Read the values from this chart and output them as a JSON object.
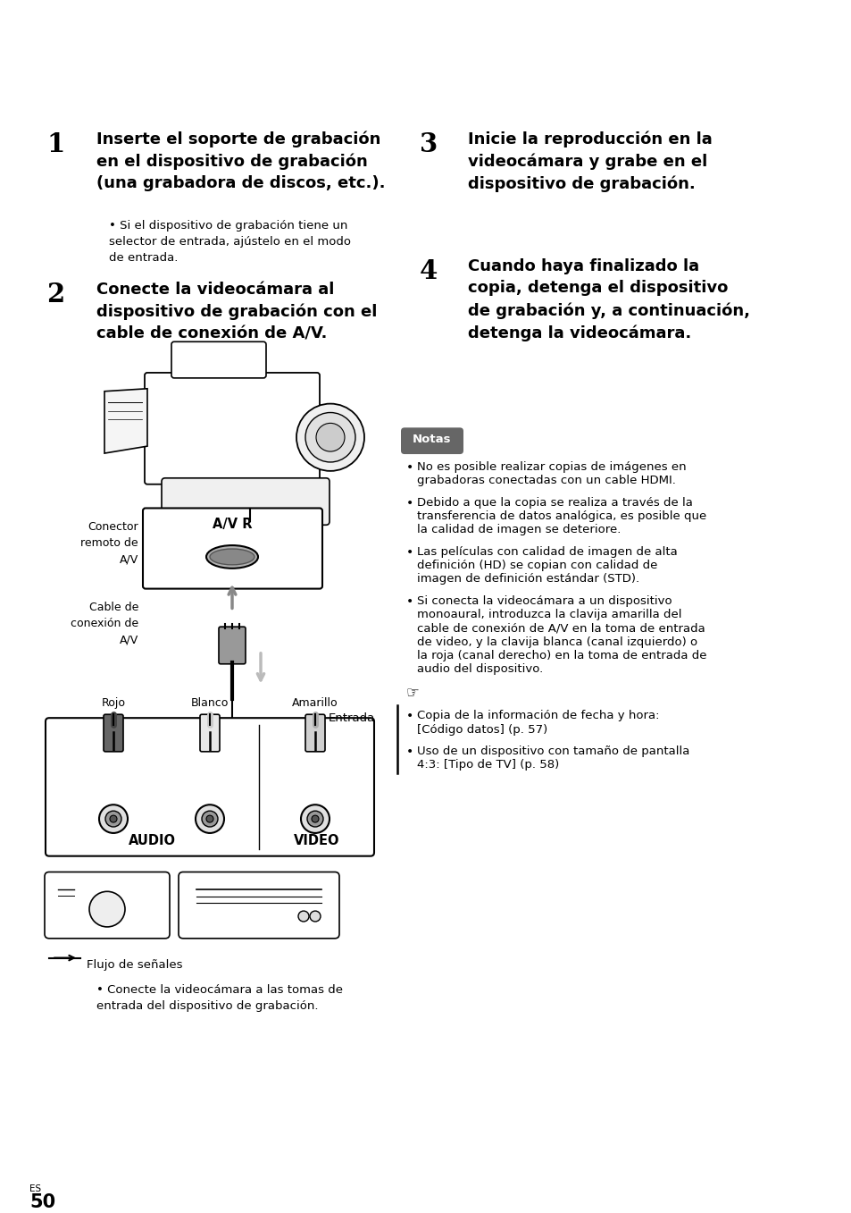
{
  "bg_color": "#ffffff",
  "page_number": "50",
  "page_label": "ES",
  "step1_num": "1",
  "step1_text": "Inserte el soporte de grabación\nen el dispositivo de grabación\n(una grabadora de discos, etc.).",
  "step1_bullet": "Si el dispositivo de grabación tiene un\nselector de entrada, ajústelo en el modo\nde entrada.",
  "step2_num": "2",
  "step2_text": "Conecte la videocámara al\ndispositivo de grabación con el\ncable de conexión de A/V.",
  "step3_num": "3",
  "step3_text": "Inicie la reproducción en la\nvideocámara y grabe en el\ndispositivo de grabación.",
  "step4_num": "4",
  "step4_text": "Cuando haya finalizado la\ncopia, detenga el dispositivo\nde grabación y, a continuación,\ndetenga la videocámara.",
  "notas_label": "Notas",
  "notas_bullets": [
    "No es posible realizar copias de imágenes en\ngrabadoras conectadas con un cable HDMI.",
    "Debido a que la copia se realiza a través de la\ntransferencia de datos analógica, es posible que\nla calidad de imagen se deteriore.",
    "Las películas con calidad de imagen de alta\ndefinición (HD) se copian con calidad de\nimagen de definición estándar (STD).",
    "Si conecta la videocámara a un dispositivo\nmonoaural, introduzca la clavija amarilla del\ncable de conexión de A/V en la toma de entrada\nde video, y la clavija blanca (canal izquierdo) o\nla roja (canal derecho) en la toma de entrada de\naudio del dispositivo."
  ],
  "ref_symbol": "☞",
  "ref_bullets": [
    "Copia de la información de fecha y hora:\n[Código datos] (p. 57)",
    "Uso de un dispositivo con tamaño de pantalla\n4:3: [Tipo de TV] (p. 58)"
  ],
  "connector_label": "Conector\nremoto de\nA/V",
  "avr_label": "A/V R",
  "cable_label": "Cable de\nconexión de\nA/V",
  "entrada_label": "Entrada",
  "rojo_label": "Rojo",
  "blanco_label": "Blanco",
  "amarillo_label": "Amarillo",
  "audio_label": "AUDIO",
  "video_label": "VIDEO",
  "signal_flow": "Flujo de señales",
  "bottom_bullet": "Conecte la videocámara a las tomas de\nentrada del dispositivo de grabación."
}
